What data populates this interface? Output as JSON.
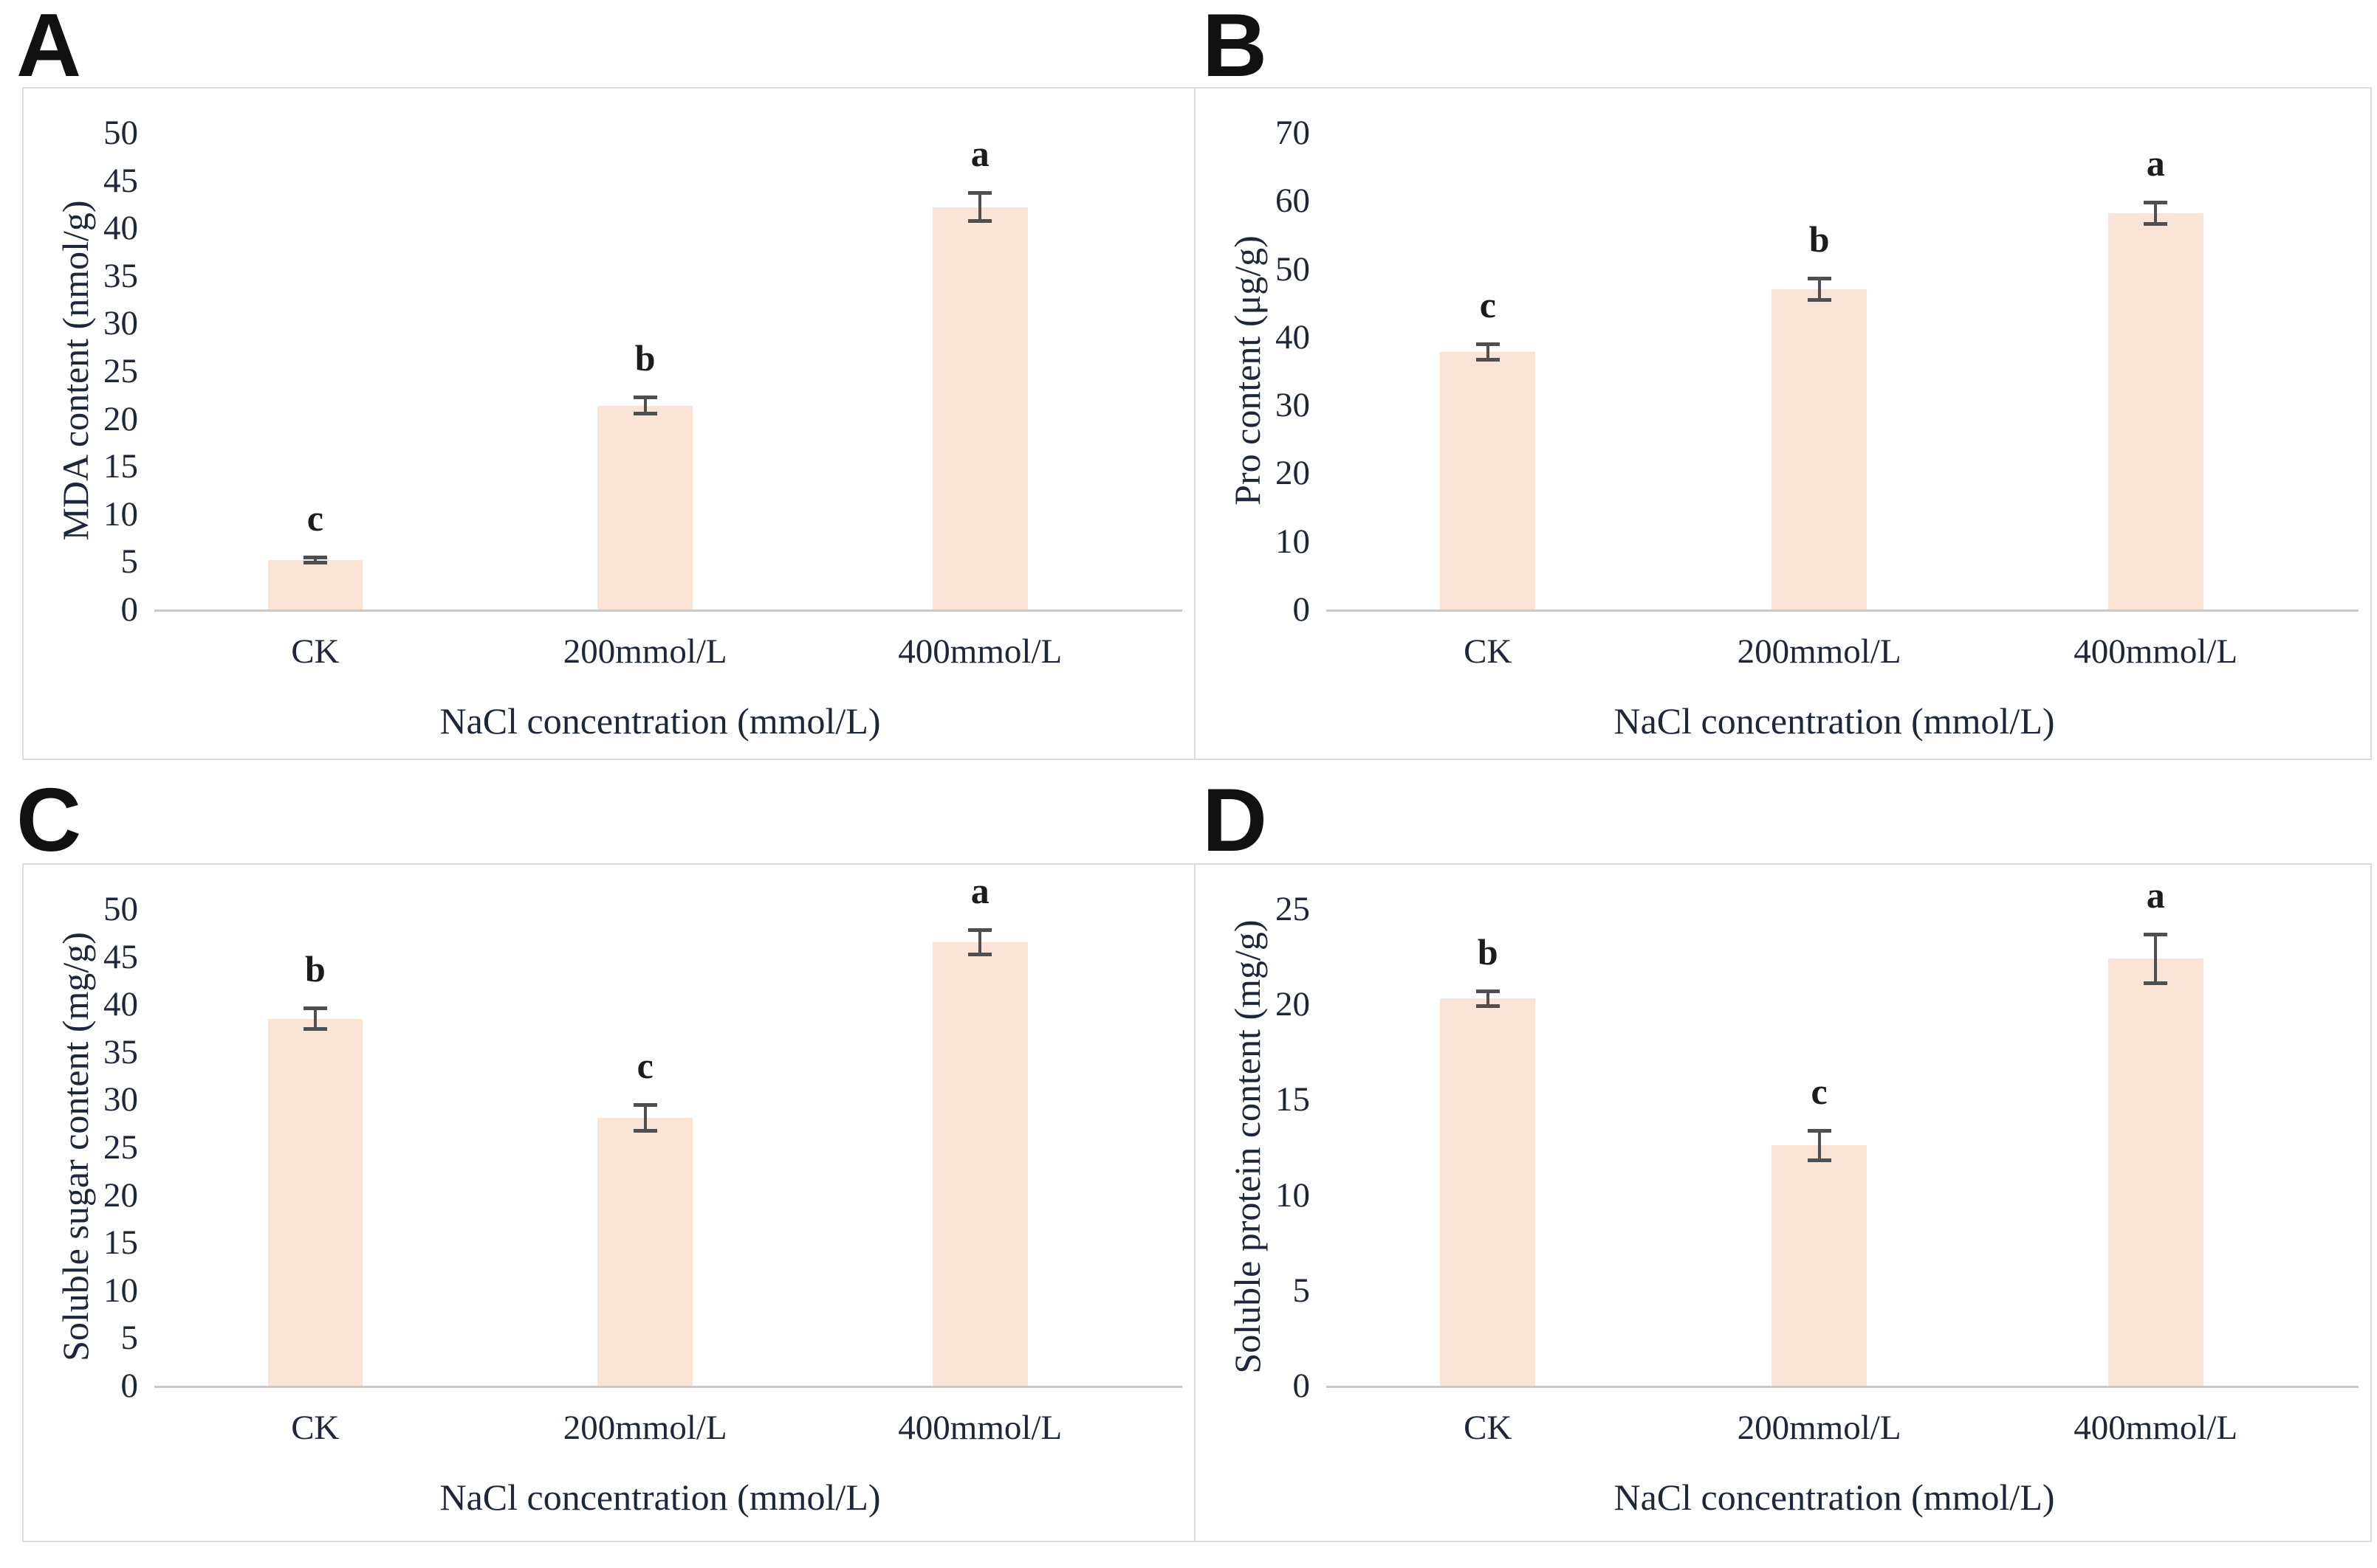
{
  "figure": {
    "style": {
      "bar_fill": "#fae4d6",
      "error_color": "#4f4f4f",
      "axis_line_color": "#c9c9c9",
      "text_color": "#1e2737",
      "panel_border_color": "#dcdcdc",
      "panel_letter_color": "#111111"
    }
  },
  "chart_data": [
    {
      "type": "bar",
      "panel_letter": "A",
      "ylabel": "MDA content (nmol/g)",
      "xlabel": "NaCl concentration (mmol/L)",
      "categories": [
        "CK",
        "200mmol/L",
        "400mmol/L"
      ],
      "values": [
        5.2,
        21.4,
        42.2
      ],
      "errors": [
        0.3,
        0.9,
        1.5
      ],
      "sig_letters": [
        "c",
        "b",
        "a"
      ],
      "ylim": [
        0,
        50
      ],
      "yticks": [
        0,
        5,
        10,
        15,
        20,
        25,
        30,
        35,
        40,
        45,
        50
      ],
      "grid": false,
      "legend": "none"
    },
    {
      "type": "bar",
      "panel_letter": "B",
      "ylabel": "Pro content (μg/g)",
      "xlabel": "NaCl concentration (mmol/L)",
      "categories": [
        "CK",
        "200mmol/L",
        "400mmol/L"
      ],
      "values": [
        37.8,
        47.0,
        58.2
      ],
      "errors": [
        1.2,
        1.6,
        1.6
      ],
      "sig_letters": [
        "c",
        "b",
        "a"
      ],
      "ylim": [
        0,
        70
      ],
      "yticks": [
        0,
        10,
        20,
        30,
        40,
        50,
        60,
        70
      ],
      "grid": false,
      "legend": "none"
    },
    {
      "type": "bar",
      "panel_letter": "C",
      "ylabel": "Soluble sugar content (mg/g)",
      "xlabel": "NaCl concentration (mmol/L)",
      "categories": [
        "CK",
        "200mmol/L",
        "400mmol/L"
      ],
      "values": [
        38.5,
        28.1,
        46.5
      ],
      "errors": [
        1.1,
        1.4,
        1.3
      ],
      "sig_letters": [
        "b",
        "c",
        "a"
      ],
      "ylim": [
        0,
        50
      ],
      "yticks": [
        0,
        5,
        10,
        15,
        20,
        25,
        30,
        35,
        40,
        45,
        50
      ],
      "grid": false,
      "legend": "none"
    },
    {
      "type": "bar",
      "panel_letter": "D",
      "ylabel": "Soluble protein content (mg/g)",
      "xlabel": "NaCl concentration (mmol/L)",
      "categories": [
        "CK",
        "200mmol/L",
        "400mmol/L"
      ],
      "values": [
        20.3,
        12.6,
        22.4
      ],
      "errors": [
        0.4,
        0.8,
        1.3
      ],
      "sig_letters": [
        "b",
        "c",
        "a"
      ],
      "ylim": [
        0,
        25
      ],
      "yticks": [
        0,
        5,
        10,
        15,
        20,
        25
      ],
      "grid": false,
      "legend": "none"
    }
  ]
}
